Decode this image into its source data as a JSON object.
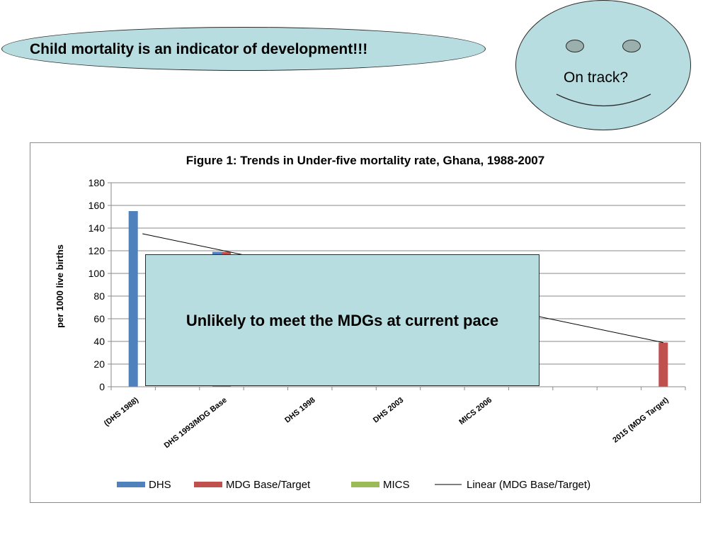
{
  "banner": {
    "text": "Child mortality is an indicator of development!!!"
  },
  "face": {
    "text": "On track?"
  },
  "overlay": {
    "text": "Unlikely to meet the MDGs at current pace"
  },
  "colors": {
    "dhs": "#4f81bd",
    "mdg": "#c0504d",
    "mics": "#9bbb59",
    "trend": "#000000",
    "accent_fill": "#b7dde0"
  },
  "chart_data": {
    "type": "bar",
    "title": "Figure 1: Trends in Under-five mortality rate, Ghana, 1988-2007",
    "ylabel": "per 1000 live births",
    "xlabel": "",
    "ylim": [
      0,
      180
    ],
    "yticks": [
      0,
      20,
      40,
      60,
      80,
      100,
      120,
      140,
      160,
      180
    ],
    "categories": [
      "(DHS  1988)",
      "DHS 1993/MDG Base",
      "DHS 1998",
      "DHS 2003",
      "MICS 2006",
      "2015 (MDG Target)"
    ],
    "category_slots": [
      0,
      2,
      4,
      6,
      8,
      12
    ],
    "slot_count": 13,
    "series": [
      {
        "name": "DHS",
        "values": [
          155,
          119,
          null,
          null,
          null,
          null
        ]
      },
      {
        "name": "MDG Base/Target",
        "values": [
          null,
          119,
          null,
          null,
          null,
          39
        ]
      },
      {
        "name": "MICS",
        "values": [
          null,
          null,
          null,
          null,
          null,
          null
        ]
      }
    ],
    "trendline": {
      "name": "Linear (MDG Base/Target)",
      "y_start": 135,
      "y_end": 39
    },
    "grid": true,
    "legend_position": "bottom"
  }
}
